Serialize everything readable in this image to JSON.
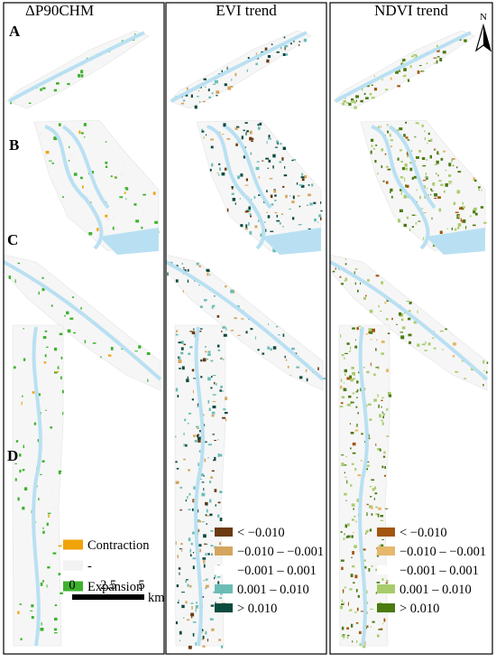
{
  "columns": [
    {
      "title": "ΔP90CHM"
    },
    {
      "title": "EVI trend"
    },
    {
      "title": "NDVI trend"
    }
  ],
  "rows": [
    "A",
    "B",
    "C",
    "D"
  ],
  "legend_change": {
    "items": [
      {
        "label": "Contraction",
        "color": "#f0a30a"
      },
      {
        "label": "-",
        "color": "#f2f2f2"
      },
      {
        "label": "Expansion",
        "color": "#3db22d"
      }
    ]
  },
  "legend_evi": {
    "items": [
      {
        "label": "< −0.010",
        "color": "#6b3a10"
      },
      {
        "label": "−0.010 – −0.001",
        "color": "#d4a55e"
      },
      {
        "label": "−0.001 – 0.001",
        "color": "#ffffff"
      },
      {
        "label": "0.001 – 0.010",
        "color": "#6cbcb6"
      },
      {
        "label": "> 0.010",
        "color": "#0b4a3e"
      }
    ]
  },
  "legend_ndvi": {
    "items": [
      {
        "label": "< −0.010",
        "color": "#a3560f"
      },
      {
        "label": "−0.010 – −0.001",
        "color": "#e5b86c"
      },
      {
        "label": "−0.001 – 0.001",
        "color": "#ffffff"
      },
      {
        "label": "0.001 – 0.010",
        "color": "#a8cc6c"
      },
      {
        "label": "> 0.010",
        "color": "#4a7a12"
      }
    ]
  },
  "scale_bar": {
    "labels": [
      "0",
      "2.5",
      "5"
    ],
    "unit": "km"
  },
  "north": "N"
}
